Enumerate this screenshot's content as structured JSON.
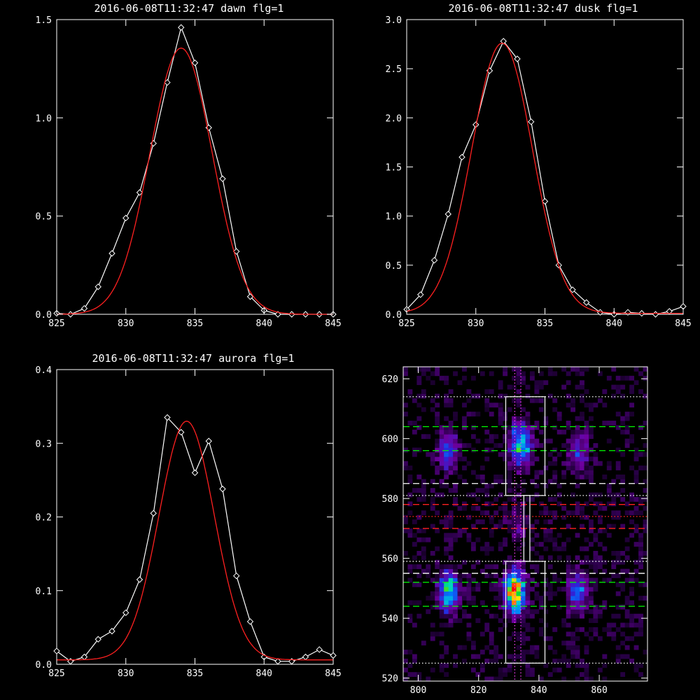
{
  "chart_data": [
    {
      "type": "line",
      "title": "2016-06-08T11:32:47 dawn flg=1",
      "xlim": [
        825,
        845
      ],
      "ylim": [
        0,
        1.5
      ],
      "xticks": [
        825,
        830,
        835,
        840,
        845
      ],
      "yticks": [
        "0.0",
        "0.5",
        "1.0",
        "1.5"
      ],
      "xtick_values": [
        825,
        830,
        835,
        840,
        845
      ],
      "ytick_values": [
        0,
        0.5,
        1.0,
        1.5
      ],
      "grid": false,
      "series": [
        {
          "marker": "diamond",
          "color": "#ffffff",
          "x": [
            825,
            826,
            827,
            828,
            829,
            830,
            831,
            832,
            833,
            834,
            835,
            836,
            837,
            838,
            839,
            840,
            841,
            842,
            843,
            844,
            845
          ],
          "y": [
            0.005,
            0.0,
            0.03,
            0.14,
            0.31,
            0.49,
            0.62,
            0.87,
            1.18,
            1.46,
            1.28,
            0.95,
            0.69,
            0.32,
            0.09,
            0.02,
            0.0,
            0.0,
            0.0,
            0.0,
            0.0
          ]
        },
        {
          "marker": "none",
          "color": "#ff2020",
          "fit": {
            "amplitude": 1.355,
            "center": 834.0,
            "sigma": 2.25,
            "offset": 0.0
          }
        }
      ]
    },
    {
      "type": "line",
      "title": "2016-06-08T11:32:47 dusk flg=1",
      "xlim": [
        825,
        845
      ],
      "ylim": [
        0,
        3.0
      ],
      "xticks": [
        825,
        830,
        835,
        840,
        845
      ],
      "yticks": [
        "0.0",
        "0.5",
        "1.0",
        "1.5",
        "2.0",
        "2.5",
        "3.0"
      ],
      "xtick_values": [
        825,
        830,
        835,
        840,
        845
      ],
      "ytick_values": [
        0,
        0.5,
        1.0,
        1.5,
        2.0,
        2.5,
        3.0
      ],
      "grid": false,
      "series": [
        {
          "marker": "diamond",
          "color": "#ffffff",
          "x": [
            825,
            826,
            827,
            828,
            829,
            830,
            831,
            832,
            833,
            834,
            835,
            836,
            837,
            838,
            839,
            840,
            841,
            842,
            843,
            844,
            845
          ],
          "y": [
            0.05,
            0.2,
            0.55,
            1.02,
            1.6,
            1.93,
            2.48,
            2.78,
            2.6,
            1.96,
            1.15,
            0.5,
            0.25,
            0.12,
            0.02,
            0.0,
            0.02,
            0.01,
            0.0,
            0.03,
            0.08
          ]
        },
        {
          "marker": "none",
          "color": "#ff2020",
          "fit": {
            "amplitude": 2.75,
            "center": 831.9,
            "sigma": 2.2,
            "offset": 0.01
          }
        }
      ]
    },
    {
      "type": "line",
      "title": "2016-06-08T11:32:47 aurora flg=1",
      "xlim": [
        825,
        845
      ],
      "ylim": [
        0,
        0.4
      ],
      "xticks": [
        825,
        830,
        835,
        840,
        845
      ],
      "yticks": [
        "0.0",
        "0.1",
        "0.2",
        "0.3",
        "0.4"
      ],
      "xtick_values": [
        825,
        830,
        835,
        840,
        845
      ],
      "ytick_values": [
        0,
        0.1,
        0.2,
        0.3,
        0.4
      ],
      "grid": false,
      "series": [
        {
          "marker": "diamond",
          "color": "#ffffff",
          "x": [
            825,
            826,
            827,
            828,
            829,
            830,
            831,
            832,
            833,
            834,
            835,
            836,
            837,
            838,
            839,
            840,
            841,
            842,
            843,
            844,
            845
          ],
          "y": [
            0.018,
            0.004,
            0.01,
            0.034,
            0.045,
            0.07,
            0.115,
            0.205,
            0.335,
            0.315,
            0.26,
            0.303,
            0.238,
            0.12,
            0.058,
            0.01,
            0.004,
            0.004,
            0.01,
            0.02,
            0.012
          ]
        },
        {
          "marker": "none",
          "color": "#ff2020",
          "fit": {
            "amplitude": 0.324,
            "center": 834.4,
            "sigma": 2.0,
            "offset": 0.006
          }
        }
      ]
    },
    {
      "type": "heatmap",
      "title": "",
      "xlim": [
        795,
        876
      ],
      "ylim": [
        519,
        624
      ],
      "xticks": [
        800,
        820,
        840,
        860
      ],
      "yticks": [
        520,
        540,
        560,
        580,
        600,
        620
      ],
      "xtick_values": [
        800,
        820,
        840,
        860
      ],
      "ytick_values": [
        520,
        540,
        560,
        580,
        600,
        620
      ],
      "grid": false,
      "spots": [
        {
          "x": 810,
          "y": 549,
          "peak": 0.6
        },
        {
          "x": 810,
          "y": 596,
          "peak": 0.38
        },
        {
          "x": 832,
          "y": 549,
          "peak": 1.0
        },
        {
          "x": 834,
          "y": 598,
          "peak": 0.65
        },
        {
          "x": 833,
          "y": 572,
          "peak": 0.16
        },
        {
          "x": 853,
          "y": 549,
          "peak": 0.4
        },
        {
          "x": 853,
          "y": 596,
          "peak": 0.28
        }
      ],
      "boxes": [
        {
          "x0": 829,
          "x1": 842,
          "y0": 581,
          "y1": 614,
          "color": "#ffffff"
        },
        {
          "x0": 829,
          "x1": 842,
          "y0": 525,
          "y1": 559,
          "color": "#ffffff"
        },
        {
          "x0": 835,
          "x1": 837,
          "y0": 559,
          "y1": 581,
          "color": "#ffffff"
        }
      ],
      "hlines": [
        {
          "y": 604,
          "color": "#00ff00",
          "style": "dashed"
        },
        {
          "y": 596,
          "color": "#00ff00",
          "style": "dashed"
        },
        {
          "y": 585,
          "color": "#ffffff",
          "style": "dashed"
        },
        {
          "y": 578,
          "color": "#ff2020",
          "style": "dashed"
        },
        {
          "y": 570,
          "color": "#ff2020",
          "style": "dashed"
        },
        {
          "y": 555,
          "color": "#ffffff",
          "style": "dashed"
        },
        {
          "y": 552,
          "color": "#00ff00",
          "style": "dashed"
        },
        {
          "y": 544,
          "color": "#00ff00",
          "style": "dashed"
        },
        {
          "y": 614,
          "color": "#ffffff",
          "style": "dotted"
        },
        {
          "y": 581,
          "color": "#ffffff",
          "style": "dotted"
        },
        {
          "y": 574,
          "color": "#ff2020",
          "style": "dotted"
        },
        {
          "y": 559,
          "color": "#ffffff",
          "style": "dotted"
        },
        {
          "y": 525,
          "color": "#ffffff",
          "style": "dotted"
        }
      ],
      "vlines": [
        {
          "x": 832,
          "color": "#ff40ff",
          "style": "dotted"
        },
        {
          "x": 834,
          "color": "#ff40ff",
          "style": "dotted"
        }
      ]
    }
  ]
}
